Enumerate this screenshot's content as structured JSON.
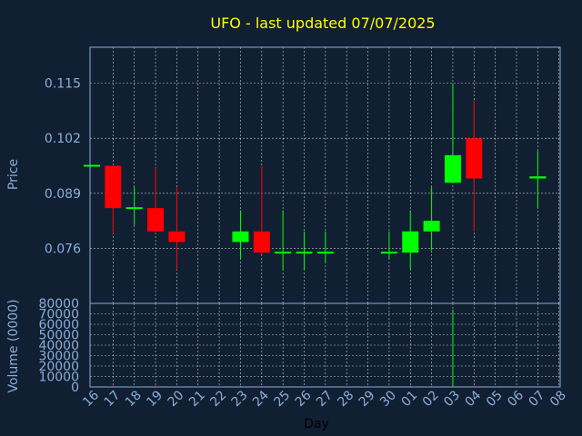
{
  "chart_data": [
    {
      "panel": "price",
      "type": "candlestick",
      "title": "UFO - last updated 07/07/2025",
      "ylabel": "Price",
      "yticks": [
        "0.076",
        "0.089",
        "0.102",
        "0.115"
      ],
      "ylim": [
        0.063,
        0.1235
      ],
      "grid": true,
      "colors": {
        "up": "#00ff00",
        "down": "#ff0000",
        "axis": "#8aaed8",
        "title": "#ffff00",
        "grid": "#ffffff",
        "background": "#111f33"
      },
      "x": [
        "16",
        "17",
        "18",
        "19",
        "20",
        "21",
        "22",
        "23",
        "24",
        "25",
        "26",
        "27",
        "28",
        "29",
        "30",
        "01",
        "02",
        "03",
        "04",
        "05",
        "06",
        "07",
        "08"
      ],
      "candles": [
        {
          "day": "16",
          "open": 0.0955,
          "high": 0.0955,
          "low": 0.0955,
          "close": 0.0955
        },
        {
          "day": "17",
          "open": 0.0955,
          "high": 0.0955,
          "low": 0.0795,
          "close": 0.0855
        },
        {
          "day": "18",
          "open": 0.0855,
          "high": 0.0905,
          "low": 0.0815,
          "close": 0.0855
        },
        {
          "day": "19",
          "open": 0.0855,
          "high": 0.095,
          "low": 0.0795,
          "close": 0.08
        },
        {
          "day": "20",
          "open": 0.08,
          "high": 0.0905,
          "low": 0.071,
          "close": 0.0775
        },
        {
          "day": "23",
          "open": 0.0775,
          "high": 0.085,
          "low": 0.0735,
          "close": 0.08
        },
        {
          "day": "24",
          "open": 0.08,
          "high": 0.0955,
          "low": 0.0745,
          "close": 0.075
        },
        {
          "day": "25",
          "open": 0.075,
          "high": 0.085,
          "low": 0.071,
          "close": 0.075
        },
        {
          "day": "26",
          "open": 0.075,
          "high": 0.08,
          "low": 0.071,
          "close": 0.075
        },
        {
          "day": "27",
          "open": 0.075,
          "high": 0.08,
          "low": 0.0725,
          "close": 0.075
        },
        {
          "day": "30",
          "open": 0.075,
          "high": 0.08,
          "low": 0.0735,
          "close": 0.075
        },
        {
          "day": "01",
          "open": 0.075,
          "high": 0.085,
          "low": 0.071,
          "close": 0.08
        },
        {
          "day": "02",
          "open": 0.08,
          "high": 0.0905,
          "low": 0.0755,
          "close": 0.0825
        },
        {
          "day": "03",
          "open": 0.0915,
          "high": 0.115,
          "low": 0.0915,
          "close": 0.098
        },
        {
          "day": "04",
          "open": 0.102,
          "high": 0.111,
          "low": 0.08,
          "close": 0.0925
        },
        {
          "day": "07",
          "open": 0.0925,
          "high": 0.099,
          "low": 0.0855,
          "close": 0.093
        }
      ]
    },
    {
      "panel": "volume",
      "type": "bar",
      "xlabel": "Day",
      "ylabel": "Volume (0000)",
      "yticks": [
        "0",
        "10000",
        "20000",
        "30000",
        "40000",
        "50000",
        "60000",
        "70000",
        "80000"
      ],
      "ylim": [
        0,
        80000
      ],
      "grid": true,
      "bars": [
        {
          "day": "17",
          "value": 1500,
          "direction": "down"
        },
        {
          "day": "19",
          "value": 1500,
          "direction": "down"
        },
        {
          "day": "23",
          "value": 800,
          "direction": "up"
        },
        {
          "day": "24",
          "value": 800,
          "direction": "down"
        },
        {
          "day": "25",
          "value": 500,
          "direction": "up"
        },
        {
          "day": "30",
          "value": 500,
          "direction": "up"
        },
        {
          "day": "01",
          "value": 800,
          "direction": "up"
        },
        {
          "day": "02",
          "value": 700,
          "direction": "up"
        },
        {
          "day": "03",
          "value": 74000,
          "direction": "up"
        },
        {
          "day": "04",
          "value": 1500,
          "direction": "down"
        },
        {
          "day": "07",
          "value": 500,
          "direction": "up"
        }
      ]
    }
  ]
}
